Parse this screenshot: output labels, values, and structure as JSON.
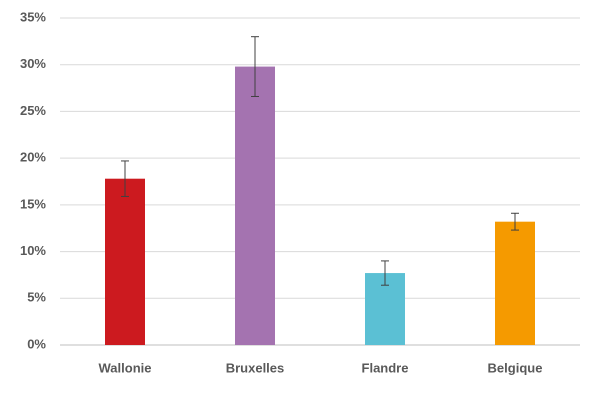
{
  "chart_data": {
    "type": "bar",
    "categories": [
      "Wallonie",
      "Bruxelles",
      "Flandre",
      "Belgique"
    ],
    "values": [
      17.8,
      29.8,
      7.7,
      13.2
    ],
    "errors": [
      1.9,
      3.2,
      1.3,
      0.9
    ],
    "colors": [
      "#cc1a1f",
      "#a473b0",
      "#5bc0d4",
      "#f59a00"
    ],
    "ylim": [
      0,
      35
    ],
    "yticks": [
      {
        "value": 0,
        "label": "0%"
      },
      {
        "value": 5,
        "label": "5%"
      },
      {
        "value": 10,
        "label": "10%"
      },
      {
        "value": 15,
        "label": "15%"
      },
      {
        "value": 20,
        "label": "20%"
      },
      {
        "value": 25,
        "label": "25%"
      },
      {
        "value": 30,
        "label": "30%"
      },
      {
        "value": 35,
        "label": "35%"
      }
    ],
    "grid": true
  }
}
